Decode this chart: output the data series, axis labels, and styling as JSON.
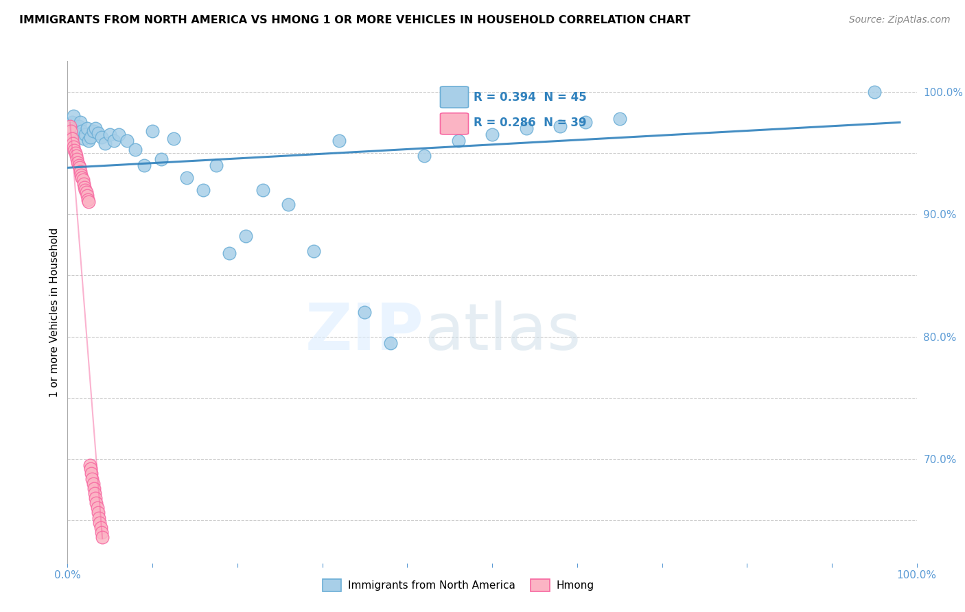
{
  "title": "IMMIGRANTS FROM NORTH AMERICA VS HMONG 1 OR MORE VEHICLES IN HOUSEHOLD CORRELATION CHART",
  "source": "Source: ZipAtlas.com",
  "ylabel": "1 or more Vehicles in Household",
  "xlim": [
    0.0,
    1.0
  ],
  "ylim": [
    0.615,
    1.025
  ],
  "x_ticks": [
    0.0,
    0.1,
    0.2,
    0.3,
    0.4,
    0.5,
    0.6,
    0.7,
    0.8,
    0.9,
    1.0
  ],
  "x_tick_labels": [
    "0.0%",
    "",
    "",
    "",
    "",
    "",
    "",
    "",
    "",
    "",
    "100.0%"
  ],
  "y_ticks": [
    0.65,
    0.7,
    0.75,
    0.8,
    0.85,
    0.9,
    0.95,
    1.0
  ],
  "y_tick_labels": [
    "",
    "70.0%",
    "",
    "80.0%",
    "",
    "90.0%",
    "",
    "100.0%"
  ],
  "R_blue": 0.394,
  "N_blue": 45,
  "R_pink": 0.286,
  "N_pink": 39,
  "legend_labels": [
    "Immigrants from North America",
    "Hmong"
  ],
  "blue_color": "#a8cfe8",
  "blue_edge": "#6baed6",
  "pink_color": "#fbb4c4",
  "pink_edge": "#f768a1",
  "line_color": "#3182bd",
  "pink_line_color": "#f768a1",
  "blue_scatter_x": [
    0.005,
    0.007,
    0.009,
    0.011,
    0.013,
    0.015,
    0.017,
    0.019,
    0.021,
    0.023,
    0.025,
    0.027,
    0.03,
    0.033,
    0.036,
    0.04,
    0.044,
    0.05,
    0.055,
    0.06,
    0.07,
    0.08,
    0.09,
    0.1,
    0.11,
    0.125,
    0.14,
    0.16,
    0.175,
    0.19,
    0.21,
    0.23,
    0.26,
    0.29,
    0.32,
    0.35,
    0.38,
    0.42,
    0.46,
    0.5,
    0.54,
    0.58,
    0.61,
    0.65,
    0.95
  ],
  "blue_scatter_y": [
    0.975,
    0.98,
    0.968,
    0.97,
    0.972,
    0.975,
    0.968,
    0.962,
    0.965,
    0.97,
    0.96,
    0.963,
    0.968,
    0.97,
    0.966,
    0.963,
    0.958,
    0.965,
    0.96,
    0.965,
    0.96,
    0.953,
    0.94,
    0.968,
    0.945,
    0.962,
    0.93,
    0.92,
    0.94,
    0.868,
    0.882,
    0.92,
    0.908,
    0.87,
    0.96,
    0.82,
    0.795,
    0.948,
    0.96,
    0.965,
    0.97,
    0.972,
    0.975,
    0.978,
    1.0
  ],
  "pink_scatter_x": [
    0.003,
    0.004,
    0.005,
    0.006,
    0.007,
    0.008,
    0.009,
    0.01,
    0.011,
    0.012,
    0.013,
    0.014,
    0.015,
    0.016,
    0.017,
    0.018,
    0.019,
    0.02,
    0.021,
    0.022,
    0.023,
    0.024,
    0.025,
    0.026,
    0.027,
    0.028,
    0.029,
    0.03,
    0.031,
    0.032,
    0.033,
    0.034,
    0.035,
    0.036,
    0.037,
    0.038,
    0.039,
    0.04,
    0.041
  ],
  "pink_scatter_y": [
    0.972,
    0.968,
    0.962,
    0.958,
    0.955,
    0.952,
    0.95,
    0.948,
    0.945,
    0.942,
    0.94,
    0.938,
    0.935,
    0.932,
    0.93,
    0.928,
    0.925,
    0.922,
    0.92,
    0.918,
    0.915,
    0.912,
    0.91,
    0.695,
    0.692,
    0.688,
    0.684,
    0.68,
    0.676,
    0.672,
    0.668,
    0.664,
    0.66,
    0.656,
    0.652,
    0.648,
    0.644,
    0.64,
    0.636
  ],
  "trendline_blue_x0": 0.0,
  "trendline_blue_x1": 0.98,
  "trendline_blue_y0": 0.938,
  "trendline_blue_y1": 0.975,
  "background_color": "#ffffff",
  "grid_color": "#cccccc",
  "tick_color": "#5b9bd5",
  "axis_color": "#aaaaaa"
}
